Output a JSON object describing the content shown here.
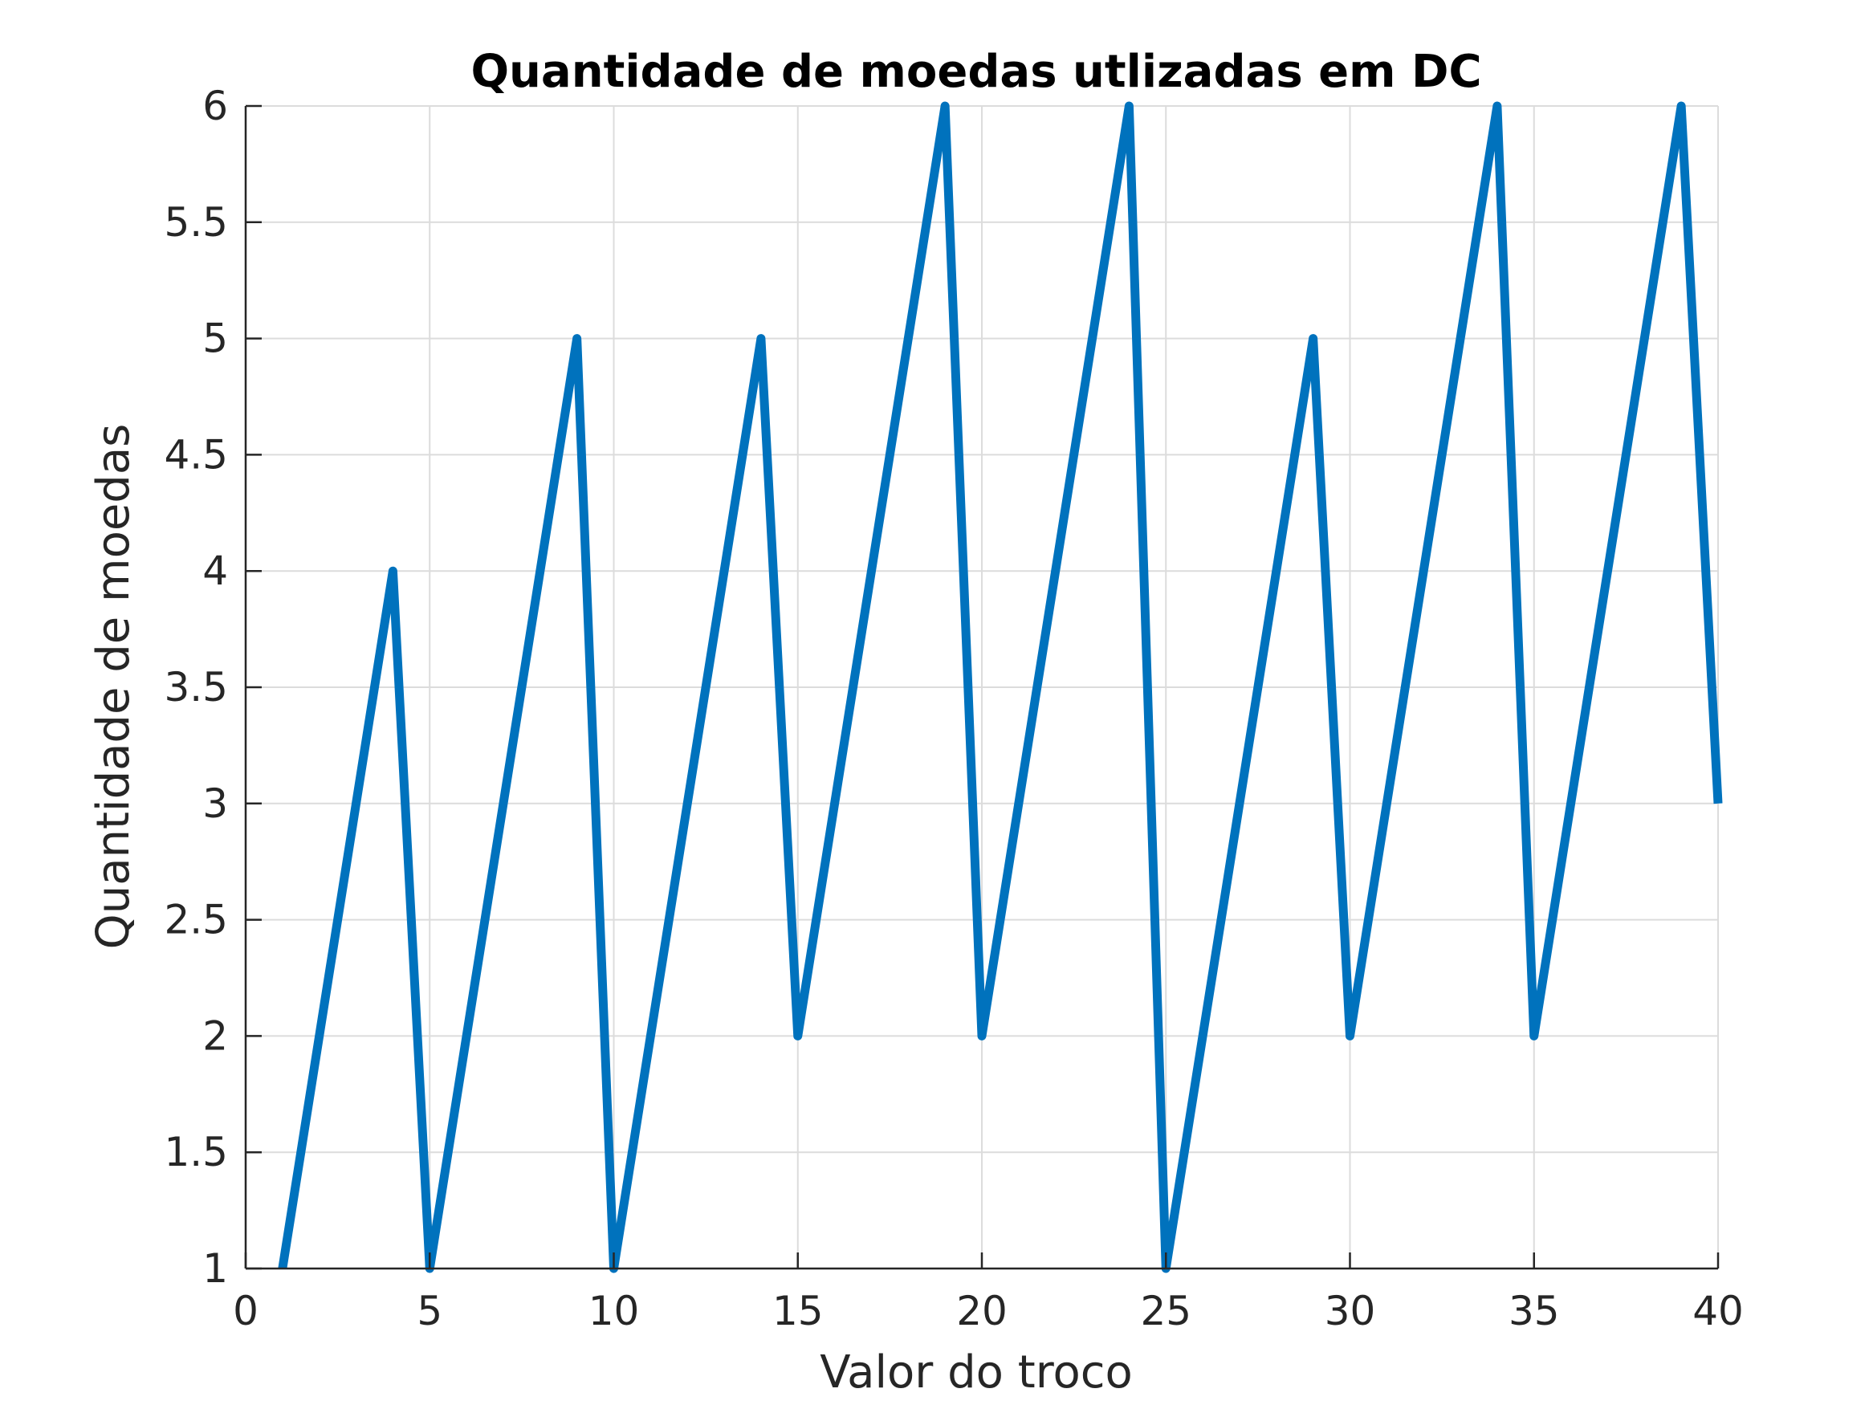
{
  "chart_data": {
    "type": "line",
    "title": "Quantidade de moedas utlizadas em DC",
    "xlabel": "Valor do troco",
    "ylabel": "Quantidade de moedas",
    "xlim": [
      0,
      40
    ],
    "ylim": [
      1,
      6
    ],
    "xticks": [
      0,
      5,
      10,
      15,
      20,
      25,
      30,
      35,
      40
    ],
    "yticks": [
      1,
      1.5,
      2,
      2.5,
      3,
      3.5,
      4,
      4.5,
      5,
      5.5,
      6
    ],
    "xtick_labels": [
      "0",
      "5",
      "10",
      "15",
      "20",
      "25",
      "30",
      "35",
      "40"
    ],
    "ytick_labels": [
      "1",
      "1.5",
      "2",
      "2.5",
      "3",
      "3.5",
      "4",
      "4.5",
      "5",
      "5.5",
      "6"
    ],
    "grid": true,
    "legend": "none",
    "series": [
      {
        "name": "Quantidade de moedas",
        "color": "#0072bd",
        "x": [
          1,
          4,
          5,
          9,
          10,
          14,
          15,
          19,
          20,
          24,
          25,
          29,
          30,
          34,
          35,
          39,
          40
        ],
        "y": [
          1,
          4,
          1,
          5,
          1,
          5,
          2,
          6,
          2,
          6,
          1,
          5,
          2,
          6,
          2,
          6,
          3
        ]
      }
    ]
  },
  "colors": {
    "line": "#0072bd",
    "grid": "#dcdcdc",
    "axis": "#262626"
  }
}
